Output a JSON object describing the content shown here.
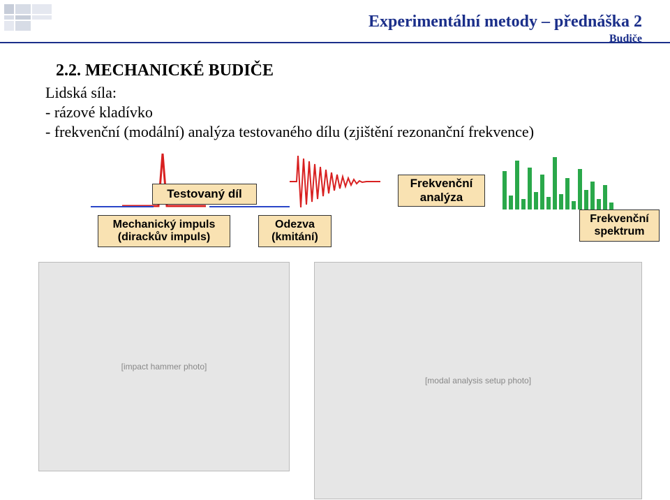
{
  "header": {
    "title": "Experimentální metody – přednáška 2",
    "subtitle": "Budiče",
    "title_color": "#1b2f8a",
    "line_color": "#1b2f8a"
  },
  "section": {
    "heading": "2.2. MECHANICKÉ BUDIČE",
    "line1": "Lidská síla:",
    "line2": "- rázové kladívko",
    "line3": "- frekvenční (modální) analýza testovaného dílu (zjištění rezonanční frekvence)",
    "heading_fontsize": 24,
    "body_fontsize": 22
  },
  "boxes": {
    "tested_part": "Testovaný díl",
    "mech_impulse": "Mechanický impuls\n(dirackův impuls)",
    "response": "Odezva\n(kmitání)",
    "freq_analysis": "Frekvenční\nanalýza",
    "freq_spectrum": "Frekvenční\nspektrum",
    "fill": "#f9e2b2",
    "border": "#333333",
    "font": "Arial"
  },
  "pulse": {
    "color": "#d82020",
    "stroke_width": 3
  },
  "wave": {
    "color": "#d82020",
    "stroke_width": 2
  },
  "connector": {
    "color": "#2a46c8",
    "width": 2
  },
  "spectrum": {
    "bar_color": "#2aa84a",
    "heights": [
      55,
      20,
      70,
      15,
      60,
      25,
      50,
      18,
      75,
      22,
      45,
      12,
      58,
      28,
      40,
      15,
      35,
      10
    ]
  },
  "images": {
    "hammer_placeholder": "[impact hammer photo]",
    "scene_placeholder": "[modal analysis setup photo]"
  },
  "decor_colors": [
    "#c7cdd9",
    "#d7dce6",
    "#e5e8f0"
  ]
}
